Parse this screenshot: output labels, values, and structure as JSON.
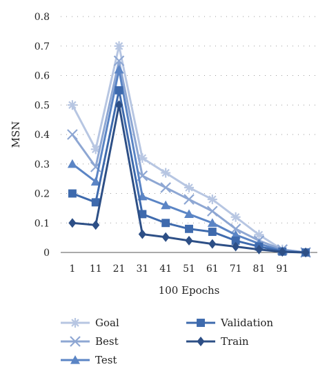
{
  "chart_data": {
    "type": "line",
    "xlabel": "100 Epochs",
    "ylabel": "MSN",
    "categories": [
      "1",
      "11",
      "21",
      "31",
      "41",
      "51",
      "61",
      "71",
      "81",
      "91",
      ""
    ],
    "ylim": [
      0,
      0.8
    ],
    "yticks": [
      "0",
      "0.1",
      "0.2",
      "0.3",
      "0.4",
      "0.5",
      "0.6",
      "0.7",
      "0.8"
    ],
    "grid": "horizontal-dotted",
    "legend_position": "bottom",
    "series": [
      {
        "name": "Goal",
        "marker": "asterisk",
        "color": "#b7c6e2",
        "values": [
          0.5,
          0.35,
          0.7,
          0.32,
          0.27,
          0.22,
          0.18,
          0.12,
          0.06,
          0.01,
          0.0
        ]
      },
      {
        "name": "Best",
        "marker": "cross",
        "color": "#8ea7d3",
        "values": [
          0.4,
          0.29,
          0.65,
          0.26,
          0.22,
          0.18,
          0.14,
          0.08,
          0.04,
          0.01,
          0.0
        ]
      },
      {
        "name": "Test",
        "marker": "triangle",
        "color": "#5b85c5",
        "values": [
          0.3,
          0.24,
          0.62,
          0.19,
          0.16,
          0.13,
          0.1,
          0.06,
          0.03,
          0.005,
          0.0
        ]
      },
      {
        "name": "Validation",
        "marker": "square",
        "color": "#3e6aad",
        "values": [
          0.2,
          0.17,
          0.55,
          0.13,
          0.1,
          0.08,
          0.07,
          0.04,
          0.02,
          0.003,
          0.0
        ]
      },
      {
        "name": "Train",
        "marker": "diamond",
        "color": "#2d4f86",
        "values": [
          0.1,
          0.093,
          0.5,
          0.062,
          0.052,
          0.04,
          0.029,
          0.02,
          0.01,
          0.002,
          0.0
        ]
      }
    ]
  }
}
